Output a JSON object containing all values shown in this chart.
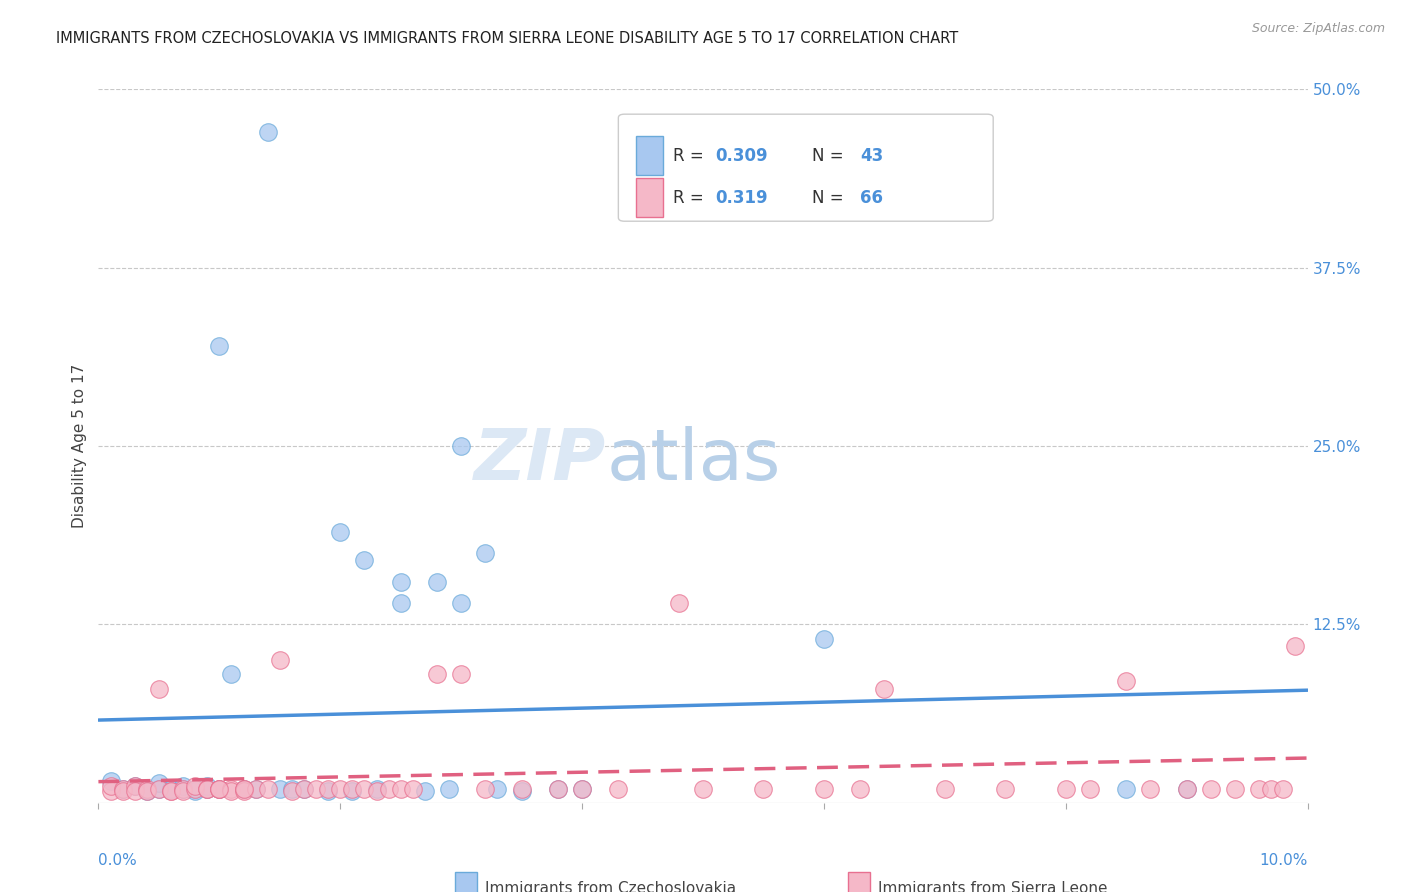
{
  "title": "IMMIGRANTS FROM CZECHOSLOVAKIA VS IMMIGRANTS FROM SIERRA LEONE DISABILITY AGE 5 TO 17 CORRELATION CHART",
  "source": "Source: ZipAtlas.com",
  "ylabel": "Disability Age 5 to 17",
  "xlim": [
    0.0,
    0.1
  ],
  "ylim": [
    0.0,
    0.5
  ],
  "ytick_vals": [
    0.0,
    0.125,
    0.25,
    0.375,
    0.5
  ],
  "ytick_labels": [
    "",
    "12.5%",
    "25.0%",
    "37.5%",
    "50.0%"
  ],
  "legend_r1": "0.309",
  "legend_n1": "43",
  "legend_r2": "0.319",
  "legend_n2": "66",
  "color_czech_fill": "#a8c8f0",
  "color_czech_edge": "#6aaada",
  "color_sierra_fill": "#f5b8c8",
  "color_sierra_edge": "#e87090",
  "color_czech_line": "#4a90d9",
  "color_sierra_line": "#e06080",
  "watermark_zip": "ZIP",
  "watermark_atlas": "atlas",
  "czech_x": [
    0.014,
    0.01,
    0.03,
    0.02,
    0.022,
    0.025,
    0.025,
    0.028,
    0.03,
    0.032,
    0.001,
    0.002,
    0.003,
    0.004,
    0.005,
    0.005,
    0.006,
    0.006,
    0.007,
    0.007,
    0.008,
    0.008,
    0.009,
    0.009,
    0.01,
    0.011,
    0.012,
    0.013,
    0.015,
    0.016,
    0.017,
    0.019,
    0.021,
    0.023,
    0.027,
    0.029,
    0.033,
    0.035,
    0.038,
    0.04,
    0.06,
    0.085,
    0.09
  ],
  "czech_y": [
    0.47,
    0.32,
    0.25,
    0.19,
    0.17,
    0.155,
    0.14,
    0.155,
    0.14,
    0.175,
    0.015,
    0.01,
    0.012,
    0.008,
    0.01,
    0.014,
    0.01,
    0.01,
    0.01,
    0.012,
    0.01,
    0.008,
    0.01,
    0.012,
    0.01,
    0.09,
    0.01,
    0.01,
    0.01,
    0.01,
    0.01,
    0.008,
    0.008,
    0.01,
    0.008,
    0.01,
    0.01,
    0.008,
    0.01,
    0.01,
    0.115,
    0.01,
    0.01
  ],
  "sierra_x": [
    0.001,
    0.001,
    0.002,
    0.002,
    0.003,
    0.003,
    0.004,
    0.004,
    0.005,
    0.005,
    0.006,
    0.006,
    0.007,
    0.007,
    0.008,
    0.008,
    0.009,
    0.009,
    0.01,
    0.01,
    0.011,
    0.011,
    0.012,
    0.012,
    0.013,
    0.014,
    0.015,
    0.016,
    0.017,
    0.018,
    0.019,
    0.02,
    0.021,
    0.022,
    0.023,
    0.024,
    0.025,
    0.026,
    0.028,
    0.03,
    0.032,
    0.035,
    0.038,
    0.04,
    0.043,
    0.048,
    0.05,
    0.055,
    0.06,
    0.063,
    0.065,
    0.07,
    0.075,
    0.08,
    0.082,
    0.085,
    0.087,
    0.09,
    0.092,
    0.094,
    0.096,
    0.097,
    0.098,
    0.099,
    0.01,
    0.012
  ],
  "sierra_y": [
    0.008,
    0.012,
    0.01,
    0.008,
    0.012,
    0.008,
    0.01,
    0.008,
    0.01,
    0.08,
    0.008,
    0.008,
    0.01,
    0.008,
    0.01,
    0.012,
    0.01,
    0.01,
    0.01,
    0.01,
    0.01,
    0.008,
    0.01,
    0.008,
    0.01,
    0.01,
    0.1,
    0.008,
    0.01,
    0.01,
    0.01,
    0.01,
    0.01,
    0.01,
    0.008,
    0.01,
    0.01,
    0.01,
    0.09,
    0.09,
    0.01,
    0.01,
    0.01,
    0.01,
    0.01,
    0.14,
    0.01,
    0.01,
    0.01,
    0.01,
    0.08,
    0.01,
    0.01,
    0.01,
    0.01,
    0.085,
    0.01,
    0.01,
    0.01,
    0.01,
    0.01,
    0.01,
    0.01,
    0.11,
    0.01,
    0.01
  ]
}
